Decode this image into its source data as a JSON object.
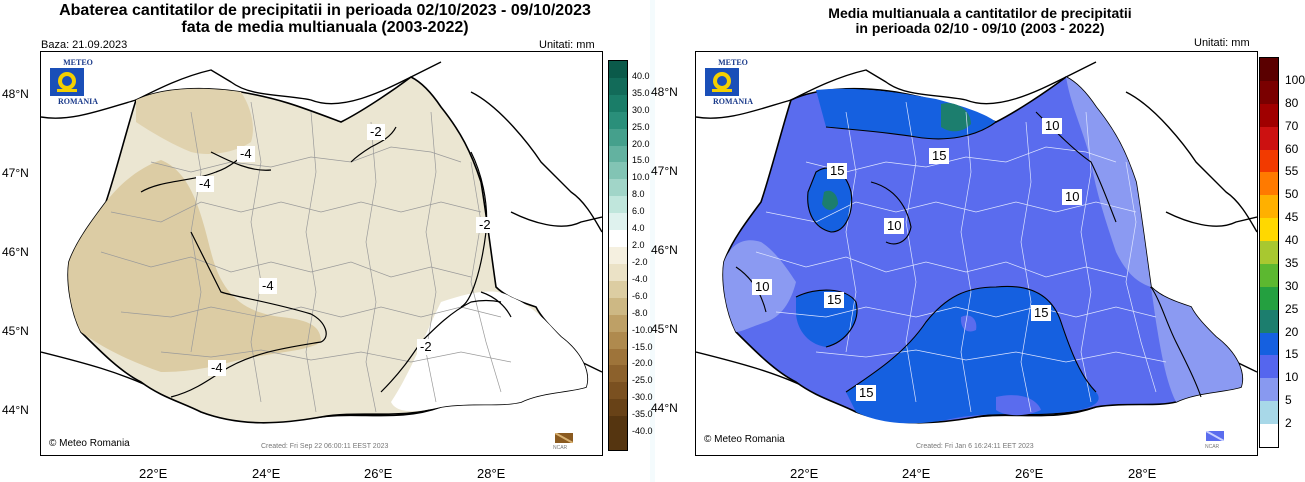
{
  "left": {
    "title_line1": "Abaterea cantitatilor de precipitatii in perioada 02/10/2023 - 09/10/2023",
    "title_line2": "fata de media multianuala (2003-2022)",
    "base_label": "Baza: 21.09.2023",
    "units": "Unitati: mm",
    "logo_top": "METEO",
    "logo_bottom": "ROMANIA",
    "copyright": "Meteo Romania",
    "created": "Created: Fri Sep 22 06:00:11 EEST 2023",
    "ncar": "NCAR",
    "lat_labels": [
      "48°N",
      "47°N",
      "46°N",
      "45°N",
      "44°N"
    ],
    "lon_labels": [
      "22°E",
      "24°E",
      "26°E",
      "28°E"
    ],
    "colorbar": {
      "labels": [
        "40.0",
        "35.0",
        "30.0",
        "25.0",
        "20.0",
        "15.0",
        "10.0",
        "8.0",
        "6.0",
        "4.0",
        "2.0",
        "-2.0",
        "-4.0",
        "-6.0",
        "-8.0",
        "-10.0",
        "-15.0",
        "-20.0",
        "-25.0",
        "-30.0",
        "-35.0",
        "-40.0"
      ],
      "colors": [
        "#0b5a4a",
        "#126b59",
        "#1a7d68",
        "#2a8f7a",
        "#45a08c",
        "#63b2a0",
        "#82c4b4",
        "#a1d5c8",
        "#c0e6dc",
        "#dff2ee",
        "#ffffff",
        "#f5f0e0",
        "#ebe2c6",
        "#dccda2",
        "#cdb884",
        "#bea066",
        "#af8a4e",
        "#9e743a",
        "#8c612c",
        "#7a5020",
        "#684217",
        "#553510"
      ]
    },
    "contour_labels": [
      "-4",
      "-4",
      "-4",
      "-2",
      "-2",
      "-2",
      "-4"
    ]
  },
  "right": {
    "title_line1": "Media multianuala a cantitatilor de precipitatii",
    "title_line2": "in perioada 02/10 - 09/10 (2003 - 2022)",
    "units": "Unitati: mm",
    "logo_top": "METEO",
    "logo_bottom": "ROMANIA",
    "copyright": "Meteo Romania",
    "created": "Created: Fri Jan 6 16:24:11 EET 2023",
    "ncar": "NCAR",
    "lat_labels": [
      "48°N",
      "47°N",
      "46°N",
      "45°N",
      "44°N"
    ],
    "lon_labels": [
      "22°E",
      "24°E",
      "26°E",
      "28°E"
    ],
    "colorbar": {
      "labels": [
        "100",
        "80",
        "70",
        "60",
        "55",
        "50",
        "45",
        "40",
        "35",
        "30",
        "25",
        "20",
        "15",
        "10",
        "5",
        "2"
      ],
      "colors": [
        "#5a0000",
        "#7a0000",
        "#a00000",
        "#cc1111",
        "#f23a00",
        "#ff7a00",
        "#ffb000",
        "#ffd800",
        "#a8c830",
        "#5cb830",
        "#24a040",
        "#1c7e6e",
        "#1560e0",
        "#5566ee",
        "#8899f0",
        "#a8d8e8",
        "#ffffff"
      ]
    },
    "contour_labels": [
      "15",
      "15",
      "10",
      "10",
      "10",
      "10",
      "15",
      "15",
      "15"
    ]
  }
}
